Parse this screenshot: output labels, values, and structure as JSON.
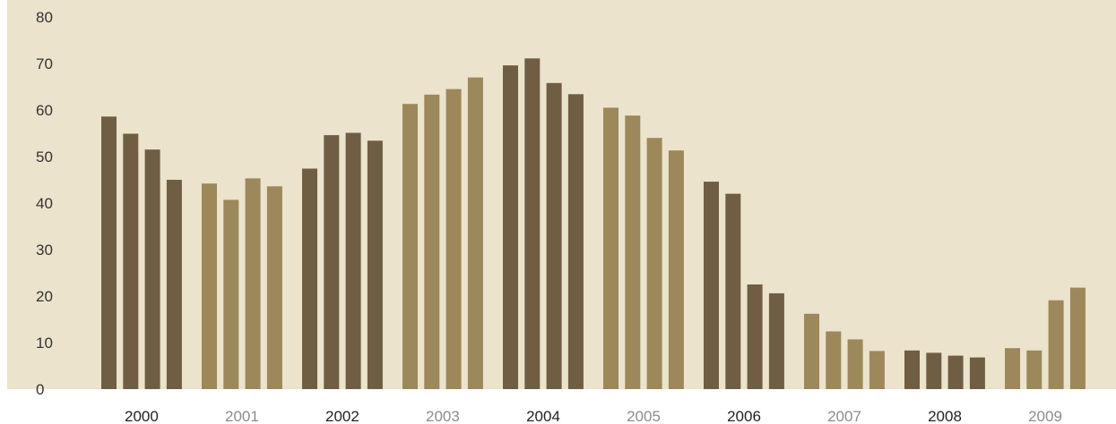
{
  "chart_data": {
    "type": "bar",
    "title": "",
    "xlabel": "",
    "ylabel": "",
    "ylim": [
      0,
      80
    ],
    "yticks": [
      0,
      10,
      20,
      30,
      40,
      50,
      60,
      70,
      80
    ],
    "grid": false,
    "legend": "none",
    "groups": [
      "2000",
      "2001",
      "2002",
      "2003",
      "2004",
      "2005",
      "2006",
      "2007",
      "2008",
      "2009"
    ],
    "bars_per_group": 4,
    "values": [
      [
        58.6,
        54.9,
        51.5,
        45.0
      ],
      [
        44.2,
        40.7,
        45.3,
        43.6
      ],
      [
        47.4,
        54.6,
        55.1,
        53.4
      ],
      [
        61.3,
        63.3,
        64.5,
        67.0
      ],
      [
        69.6,
        71.1,
        65.8,
        63.4
      ],
      [
        60.5,
        58.8,
        54.0,
        51.3
      ],
      [
        44.6,
        42.0,
        22.5,
        20.6
      ],
      [
        16.2,
        12.4,
        10.7,
        8.2
      ],
      [
        8.3,
        7.8,
        7.2,
        6.8
      ],
      [
        8.8,
        8.3,
        19.1,
        21.8
      ]
    ]
  },
  "colors": {
    "background": "#ebe3cc",
    "bar_dark": "#6f5e43",
    "bar_light": "#9c885b",
    "label_dark": "#222222",
    "label_light": "#8c8c8c"
  }
}
